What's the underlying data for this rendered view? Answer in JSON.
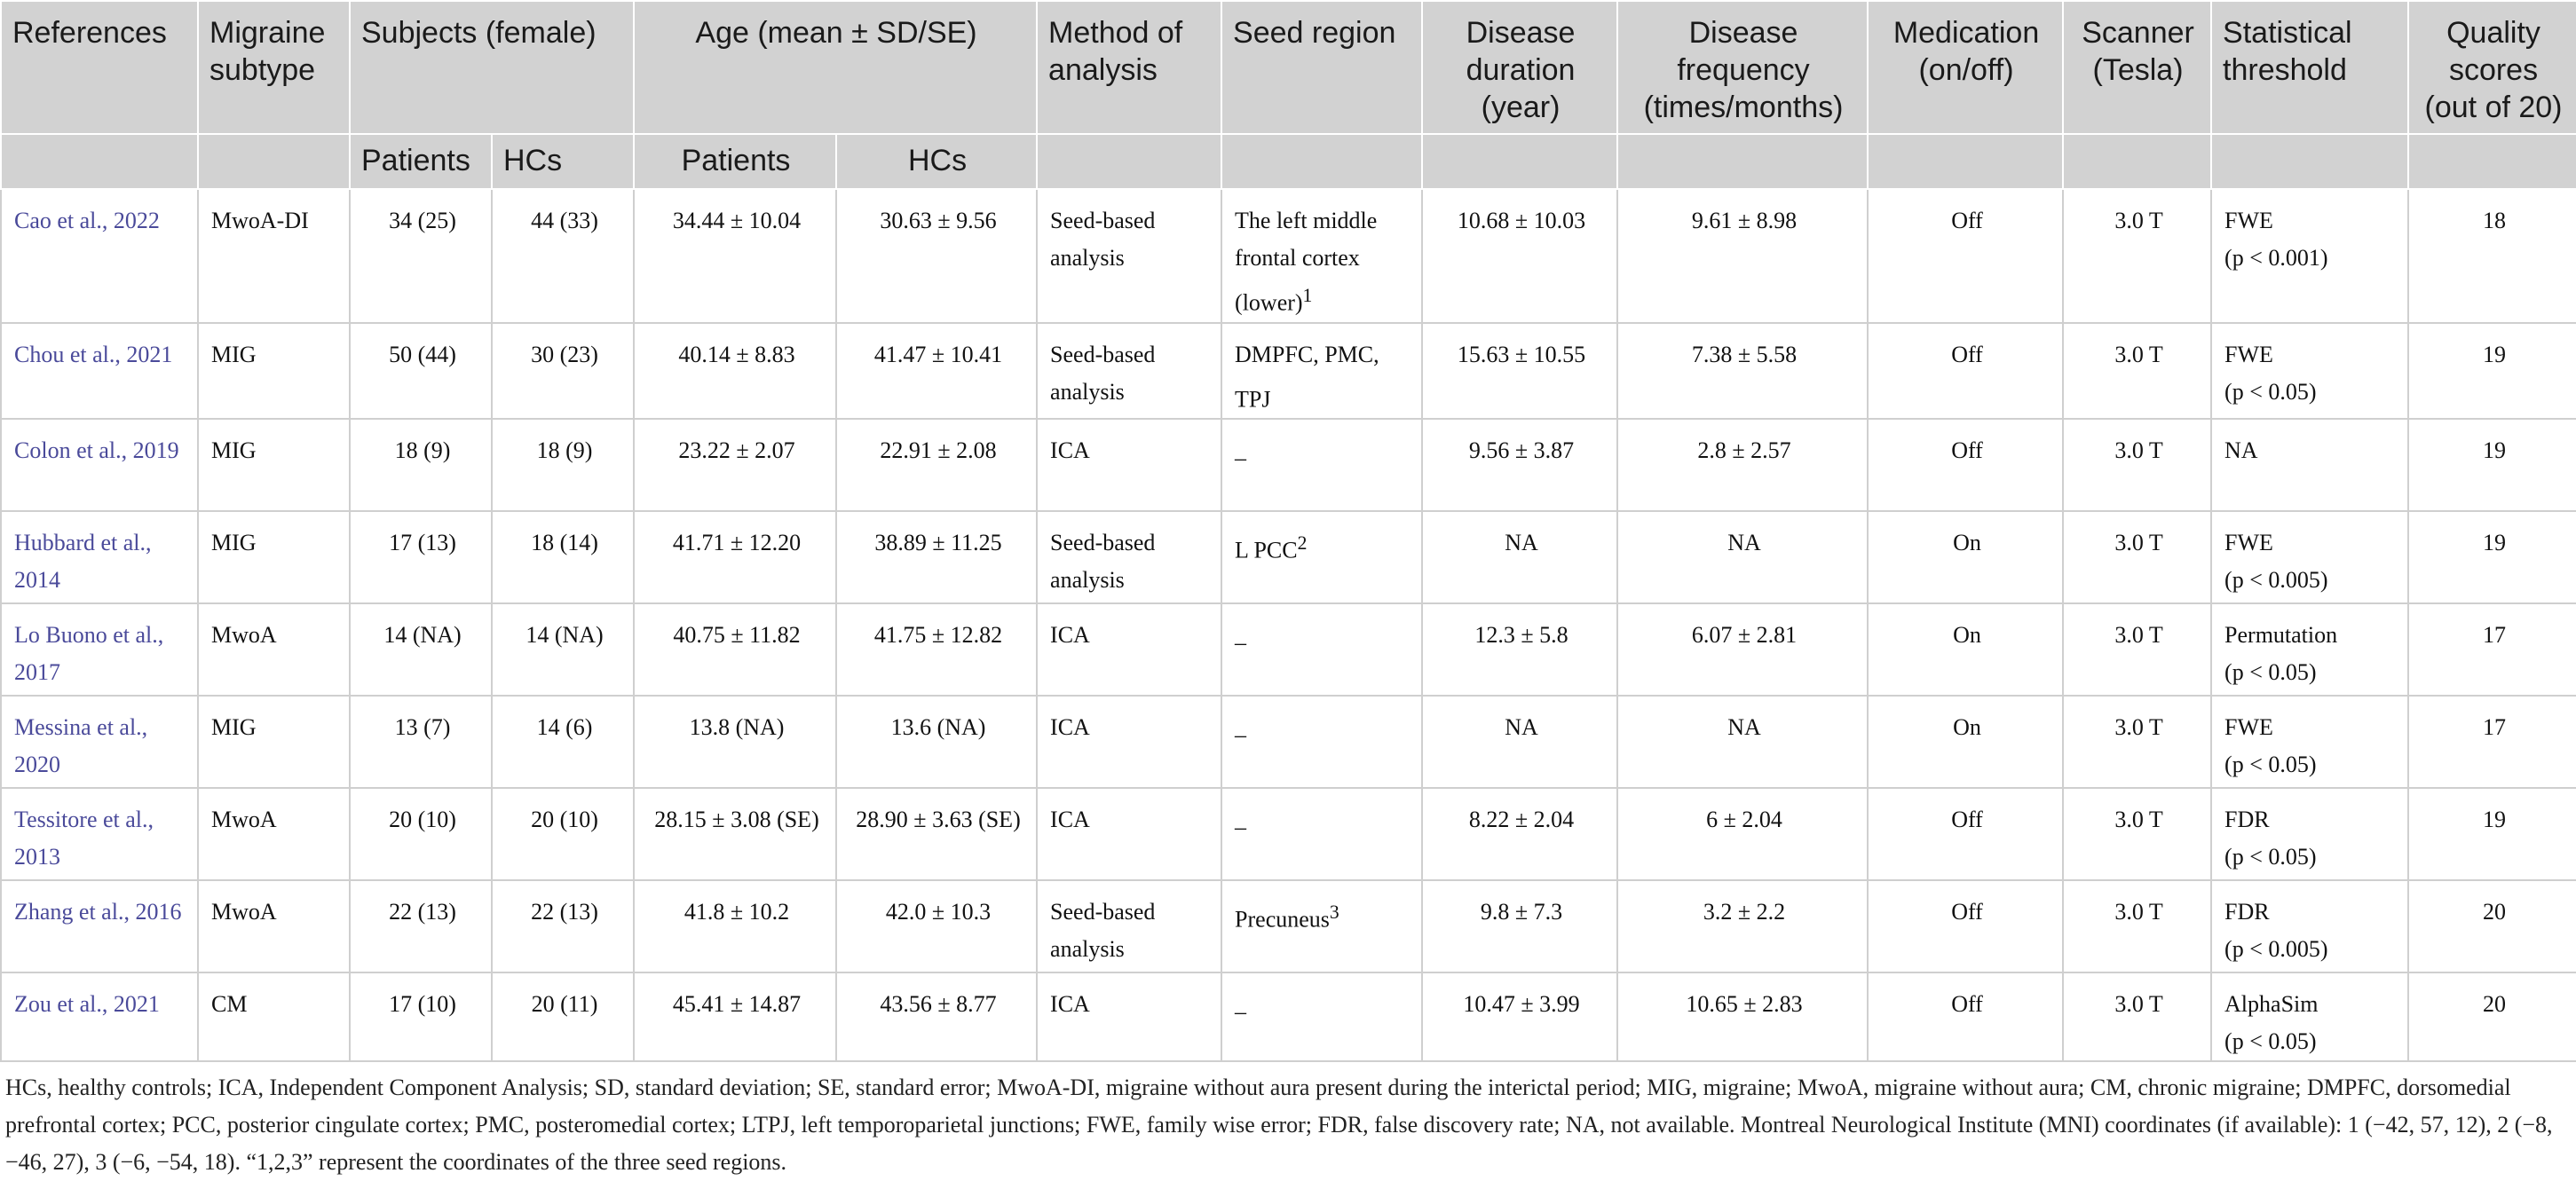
{
  "header": {
    "references": "References",
    "migraine_subtype": "Migraine subtype",
    "subjects": "Subjects (female)",
    "age": "Age (mean ± SD/SE)",
    "method": "Method of analysis",
    "seed_region": "Seed region",
    "disease_duration": "Disease duration (year)",
    "disease_frequency": "Disease frequency (times/months)",
    "medication": "Medication (on/off)",
    "scanner": "Scanner (Tesla)",
    "statistical_threshold": "Statistical threshold",
    "quality_scores": "Quality scores (out of 20)",
    "patients": "Patients",
    "hcs": "HCs"
  },
  "rows": [
    {
      "ref": "Cao et al., 2022",
      "subtype": "MwoA-DI",
      "subj_patients": "34 (25)",
      "subj_hcs": "44 (33)",
      "age_patients": "34.44 ± 10.04",
      "age_hcs": "30.63 ± 9.56",
      "method": "Seed-based analysis",
      "seed": "The left middle frontal cortex (lower)",
      "seed_sup": "1",
      "duration": "10.68 ± 10.03",
      "frequency": "9.61 ± 8.98",
      "medication": "Off",
      "scanner": "3.0 T",
      "threshold": "FWE",
      "threshold_p": "(p < 0.001)",
      "quality": "18"
    },
    {
      "ref": "Chou et al., 2021",
      "subtype": "MIG",
      "subj_patients": "50 (44)",
      "subj_hcs": "30 (23)",
      "age_patients": "40.14 ± 8.83",
      "age_hcs": "41.47 ± 10.41",
      "method": "Seed-based analysis",
      "seed": "DMPFC, PMC, TPJ",
      "seed_sup": "",
      "duration": "15.63 ± 10.55",
      "frequency": "7.38 ± 5.58",
      "medication": "Off",
      "scanner": "3.0 T",
      "threshold": "FWE",
      "threshold_p": "(p < 0.05)",
      "quality": "19"
    },
    {
      "ref": "Colon et al., 2019",
      "subtype": "MIG",
      "subj_patients": "18 (9)",
      "subj_hcs": "18 (9)",
      "age_patients": "23.22 ± 2.07",
      "age_hcs": "22.91 ± 2.08",
      "method": "ICA",
      "seed": "–",
      "seed_sup": "",
      "duration": "9.56 ± 3.87",
      "frequency": "2.8 ± 2.57",
      "medication": "Off",
      "scanner": "3.0 T",
      "threshold": "NA",
      "threshold_p": "",
      "quality": "19"
    },
    {
      "ref": "Hubbard et al., 2014",
      "subtype": "MIG",
      "subj_patients": "17 (13)",
      "subj_hcs": "18 (14)",
      "age_patients": "41.71 ± 12.20",
      "age_hcs": "38.89 ± 11.25",
      "method": "Seed-based analysis",
      "seed": "L PCC",
      "seed_sup": "2",
      "duration": "NA",
      "frequency": "NA",
      "medication": "On",
      "scanner": "3.0 T",
      "threshold": "FWE",
      "threshold_p": "(p < 0.005)",
      "quality": "19"
    },
    {
      "ref": "Lo Buono et al., 2017",
      "subtype": "MwoA",
      "subj_patients": "14 (NA)",
      "subj_hcs": "14 (NA)",
      "age_patients": "40.75 ± 11.82",
      "age_hcs": "41.75 ± 12.82",
      "method": "ICA",
      "seed": "–",
      "seed_sup": "",
      "duration": "12.3 ± 5.8",
      "frequency": "6.07 ± 2.81",
      "medication": "On",
      "scanner": "3.0 T",
      "threshold": "Permutation",
      "threshold_p": "(p < 0.05)",
      "quality": "17"
    },
    {
      "ref": "Messina et al., 2020",
      "subtype": "MIG",
      "subj_patients": "13 (7)",
      "subj_hcs": "14 (6)",
      "age_patients": "13.8 (NA)",
      "age_hcs": "13.6 (NA)",
      "method": "ICA",
      "seed": "–",
      "seed_sup": "",
      "duration": "NA",
      "frequency": "NA",
      "medication": "On",
      "scanner": "3.0 T",
      "threshold": "FWE",
      "threshold_p": "(p < 0.05)",
      "quality": "17"
    },
    {
      "ref": "Tessitore et al., 2013",
      "subtype": "MwoA",
      "subj_patients": "20 (10)",
      "subj_hcs": "20 (10)",
      "age_patients": "28.15 ± 3.08 (SE)",
      "age_hcs": "28.90 ± 3.63 (SE)",
      "method": "ICA",
      "seed": "–",
      "seed_sup": "",
      "duration": "8.22 ± 2.04",
      "frequency": "6 ± 2.04",
      "medication": "Off",
      "scanner": "3.0 T",
      "threshold": "FDR",
      "threshold_p": "(p < 0.05)",
      "quality": "19"
    },
    {
      "ref": "Zhang et al., 2016",
      "subtype": "MwoA",
      "subj_patients": "22 (13)",
      "subj_hcs": "22 (13)",
      "age_patients": "41.8 ± 10.2",
      "age_hcs": "42.0 ± 10.3",
      "method": "Seed-based analysis",
      "seed": "Precuneus",
      "seed_sup": "3",
      "duration": "9.8 ± 7.3",
      "frequency": "3.2 ± 2.2",
      "medication": "Off",
      "scanner": "3.0 T",
      "threshold": "FDR",
      "threshold_p": "(p < 0.005)",
      "quality": "20"
    },
    {
      "ref": "Zou et al., 2021",
      "subtype": "CM",
      "subj_patients": "17 (10)",
      "subj_hcs": "20 (11)",
      "age_patients": "45.41 ± 14.87",
      "age_hcs": "43.56 ± 8.77",
      "method": "ICA",
      "seed": "–",
      "seed_sup": "",
      "duration": "10.47 ± 3.99",
      "frequency": "10.65 ± 2.83",
      "medication": "Off",
      "scanner": "3.0 T",
      "threshold": "AlphaSim",
      "threshold_p": "(p < 0.05)",
      "quality": "20"
    }
  ],
  "footnote": "HCs, healthy controls; ICA, Independent Component Analysis; SD, standard deviation; SE, standard error; MwoA-DI, migraine without aura present during the interictal period; MIG, migraine; MwoA, migraine without aura; CM, chronic migraine; DMPFC, dorsomedial prefrontal cortex; PCC, posterior cingulate cortex; PMC, posteromedial cortex; LTPJ, left temporoparietal junctions; FWE, family wise error; FDR, false discovery rate; NA, not available. Montreal Neurological Institute (MNI) coordinates (if available): 1 (−42, 57, 12), 2 (−8, −46, 27), 3 (−6, −54, 18). “1,2,3” represent the coordinates of the three seed regions."
}
